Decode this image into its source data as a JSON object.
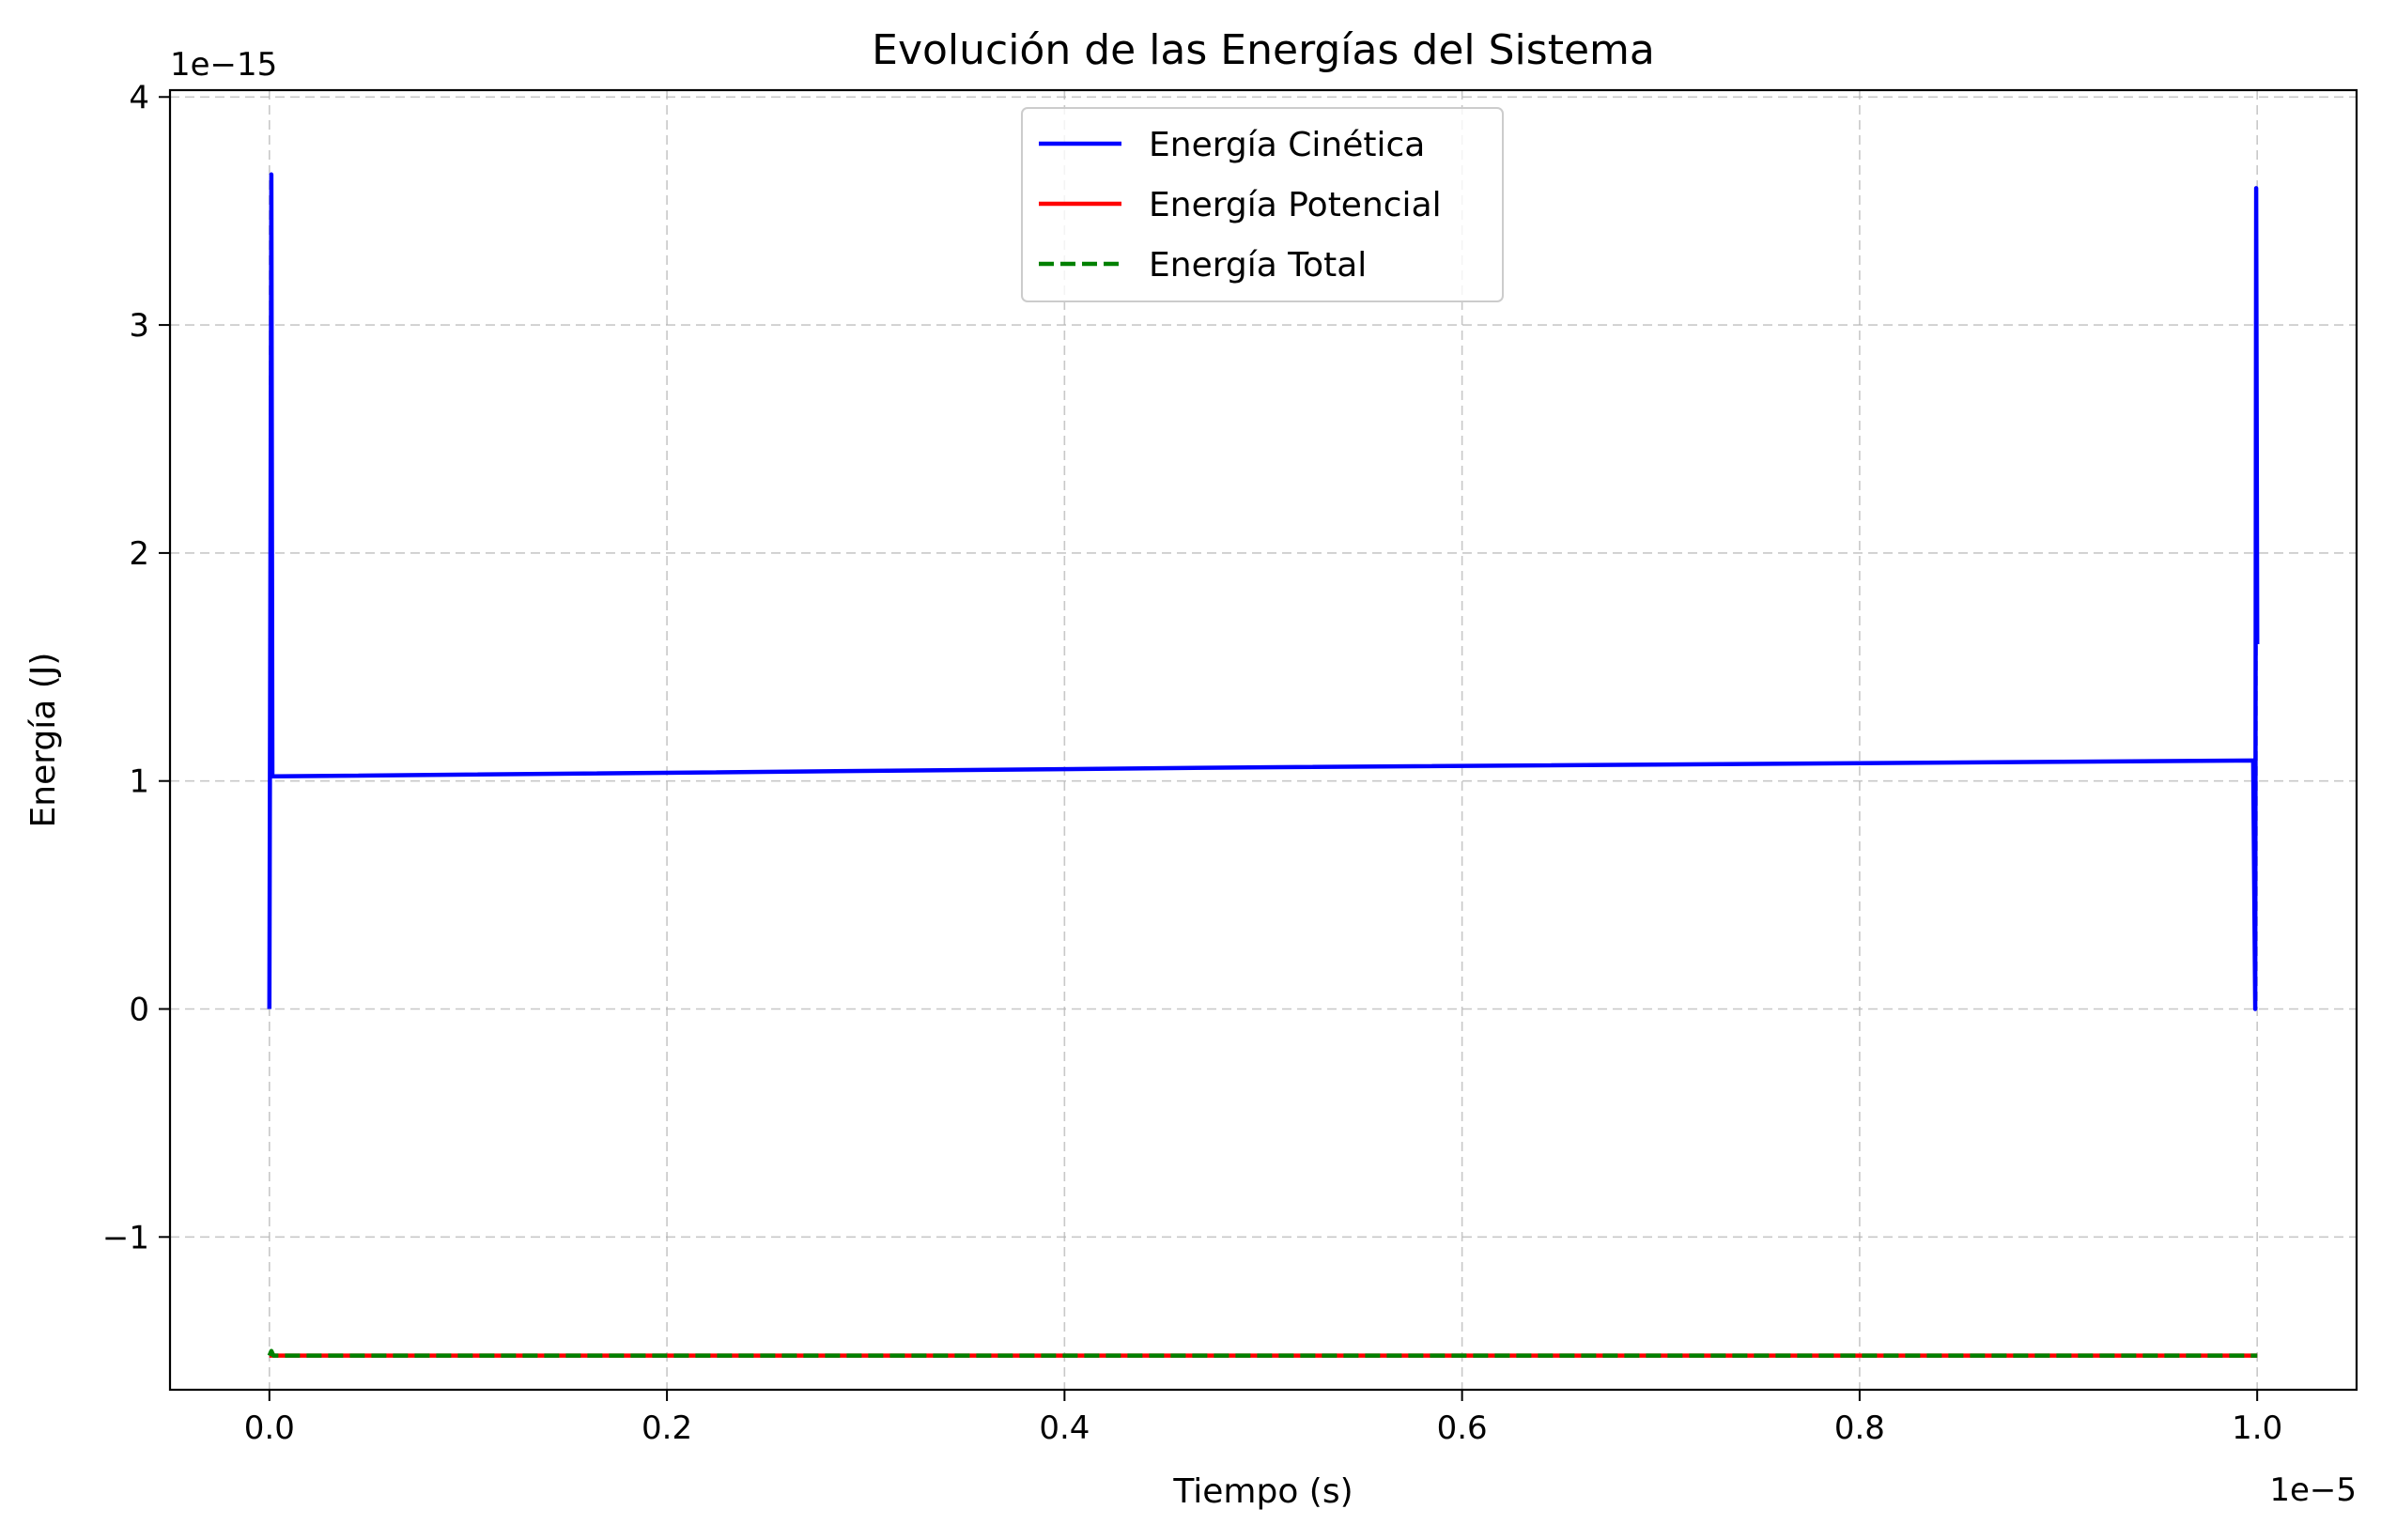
{
  "chart_data": {
    "type": "line",
    "title": "Evolución de las Energías del Sistema",
    "xlabel": "Tiempo (s)",
    "ylabel": "Energía (J)",
    "x_offset_text": "1e−5",
    "y_offset_text": "1e−15",
    "xlim": [
      -0.05,
      1.05
    ],
    "ylim": [
      -1.67,
      4.03
    ],
    "x_ticks": [
      0.0,
      0.2,
      0.4,
      0.6,
      0.8,
      1.0
    ],
    "x_tick_labels": [
      "0.0",
      "0.2",
      "0.4",
      "0.6",
      "0.8",
      "1.0"
    ],
    "y_ticks": [
      -1,
      0,
      1,
      2,
      3,
      4
    ],
    "y_tick_labels": [
      "−1",
      "0",
      "1",
      "2",
      "3",
      "4"
    ],
    "grid": true,
    "legend_position": "top-center",
    "series": [
      {
        "name": "Energía Cinética",
        "color": "#0000ff",
        "dash": "solid",
        "x": [
          0.0,
          0.001,
          0.0015,
          0.002,
          0.5,
          0.998,
          0.999,
          0.9995,
          1.0
        ],
        "y": [
          0.0,
          3.66,
          1.02,
          1.02,
          1.06,
          1.09,
          0.0,
          3.6,
          1.6
        ]
      },
      {
        "name": "Energía Potencial",
        "color": "#ff0000",
        "dash": "solid",
        "x": [
          0.0,
          0.5,
          1.0
        ],
        "y": [
          -1.52,
          -1.52,
          -1.52
        ]
      },
      {
        "name": "Energía Total",
        "color": "#008000",
        "dash": "dashed",
        "x": [
          0.0,
          0.001,
          0.002,
          0.5,
          1.0
        ],
        "y": [
          -1.52,
          -1.5,
          -1.52,
          -1.52,
          -1.52
        ]
      }
    ]
  }
}
